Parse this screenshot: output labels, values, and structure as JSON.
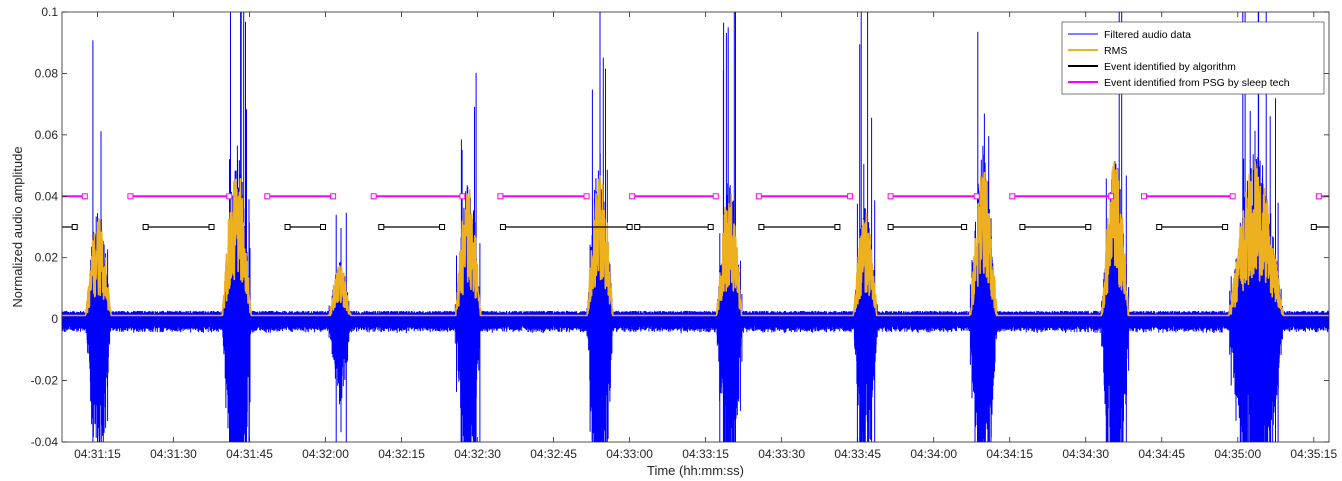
{
  "chart_data": {
    "type": "line",
    "xlabel": "Time (hh:mm:ss)",
    "ylabel": "Normalized audio amplitude",
    "xlim": [
      67868,
      68118
    ],
    "ylim": [
      -0.04,
      0.1
    ],
    "yticks": [
      -0.04,
      -0.02,
      0,
      0.02,
      0.04,
      0.06,
      0.08,
      0.1
    ],
    "ytick_labels": [
      "-0.04",
      "-0.02",
      "0",
      "0.02",
      "0.04",
      "0.06",
      "0.08",
      "0.1"
    ],
    "xticks": [
      67875,
      67890,
      67905,
      67920,
      67935,
      67950,
      67965,
      67980,
      67995,
      68010,
      68025,
      68040,
      68055,
      68070,
      68085,
      68100,
      68115
    ],
    "xtick_labels": [
      "04:31:15",
      "04:31:30",
      "04:31:45",
      "04:32:00",
      "04:32:15",
      "04:32:30",
      "04:32:45",
      "04:33:00",
      "04:33:15",
      "04:33:30",
      "04:33:45",
      "04:34:00",
      "04:34:15",
      "04:34:30",
      "04:34:45",
      "04:35:00",
      "04:35:15"
    ],
    "legend_position": "top-right",
    "legend": [
      {
        "label": "Filtered audio data",
        "color": "#0000ff"
      },
      {
        "label": "RMS",
        "color": "#edb120"
      },
      {
        "label": "Event identified by algorithm",
        "color": "#000000"
      },
      {
        "label": "Event identified from PSG by sleep tech",
        "color": "#ff00ff"
      }
    ],
    "snore_bursts": [
      {
        "start": 67872.5,
        "end": 67881,
        "peak": 0.065
      },
      {
        "start": 67899.5,
        "end": 67909,
        "peak": 0.1
      },
      {
        "start": 67920.5,
        "end": 67928,
        "peak": 0.034
      },
      {
        "start": 67945.5,
        "end": 67954,
        "peak": 0.085
      },
      {
        "start": 67971.5,
        "end": 67980,
        "peak": 0.1
      },
      {
        "start": 67997,
        "end": 68005.5,
        "peak": 0.082
      },
      {
        "start": 68024,
        "end": 68032,
        "peak": 0.07
      },
      {
        "start": 68047,
        "end": 68056,
        "peak": 0.1
      },
      {
        "start": 68073,
        "end": 68082,
        "peak": 0.1
      },
      {
        "start": 68098,
        "end": 68116,
        "peak": 0.1
      }
    ],
    "series": [
      {
        "name": "Event identified from PSG by sleep tech",
        "color": "#ff00ff",
        "level": 0.04,
        "segments": [
          [
            67868,
            67872.5
          ],
          [
            67881.5,
            67901
          ],
          [
            67908.5,
            67921.5
          ],
          [
            67929.5,
            67947
          ],
          [
            67954.5,
            67971.5
          ],
          [
            67980.5,
            67997
          ],
          [
            68005.5,
            68023.5
          ],
          [
            68031.5,
            68048.5
          ],
          [
            68055.5,
            68075
          ],
          [
            68081.5,
            68099
          ],
          [
            68116,
            68118
          ]
        ]
      },
      {
        "name": "Event identified by algorithm",
        "color": "#000000",
        "level": 0.03,
        "segments": [
          [
            67868,
            67870.5
          ],
          [
            67884.5,
            67897.5
          ],
          [
            67912.5,
            67919.5
          ],
          [
            67931,
            67943
          ],
          [
            67955,
            67980
          ],
          [
            67981.5,
            67996
          ],
          [
            68006,
            68021
          ],
          [
            68031.5,
            68046
          ],
          [
            68057.5,
            68070.5
          ],
          [
            68084.5,
            68097.5
          ],
          [
            68115,
            68118
          ]
        ]
      }
    ]
  }
}
